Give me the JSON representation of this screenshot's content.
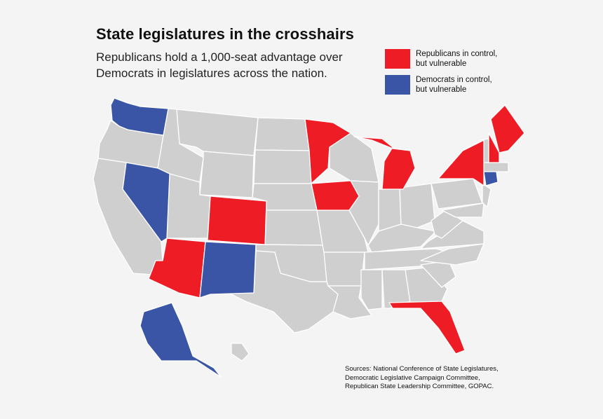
{
  "title": "State legislatures in the crosshairs",
  "subtitle": "Republicans hold a 1,000-seat advantage over Democrats in legislatures across the nation.",
  "legend": [
    {
      "label": "Republicans in control,\nbut vulnerable",
      "color": "#ee1c25"
    },
    {
      "label": "Democrats in control,\nbut vulnerable",
      "color": "#3a55a6"
    }
  ],
  "sources": "Sources: National Conference of State Legislatures,\nDemocratic Legislative Campaign Committee,\nRepublican State Leadership Committee, GOPAC.",
  "colors": {
    "republican": "#ee1c25",
    "democrat": "#3a55a6",
    "other": "#cfcfd0",
    "border": "#ffffff"
  },
  "states": {
    "republican_vulnerable": [
      "Colorado",
      "Arizona",
      "Minnesota",
      "Iowa",
      "Michigan",
      "New York",
      "New Hampshire",
      "Maine",
      "Florida"
    ],
    "democrat_vulnerable": [
      "Washington",
      "Nevada",
      "New Mexico",
      "Alaska",
      "Connecticut"
    ]
  }
}
